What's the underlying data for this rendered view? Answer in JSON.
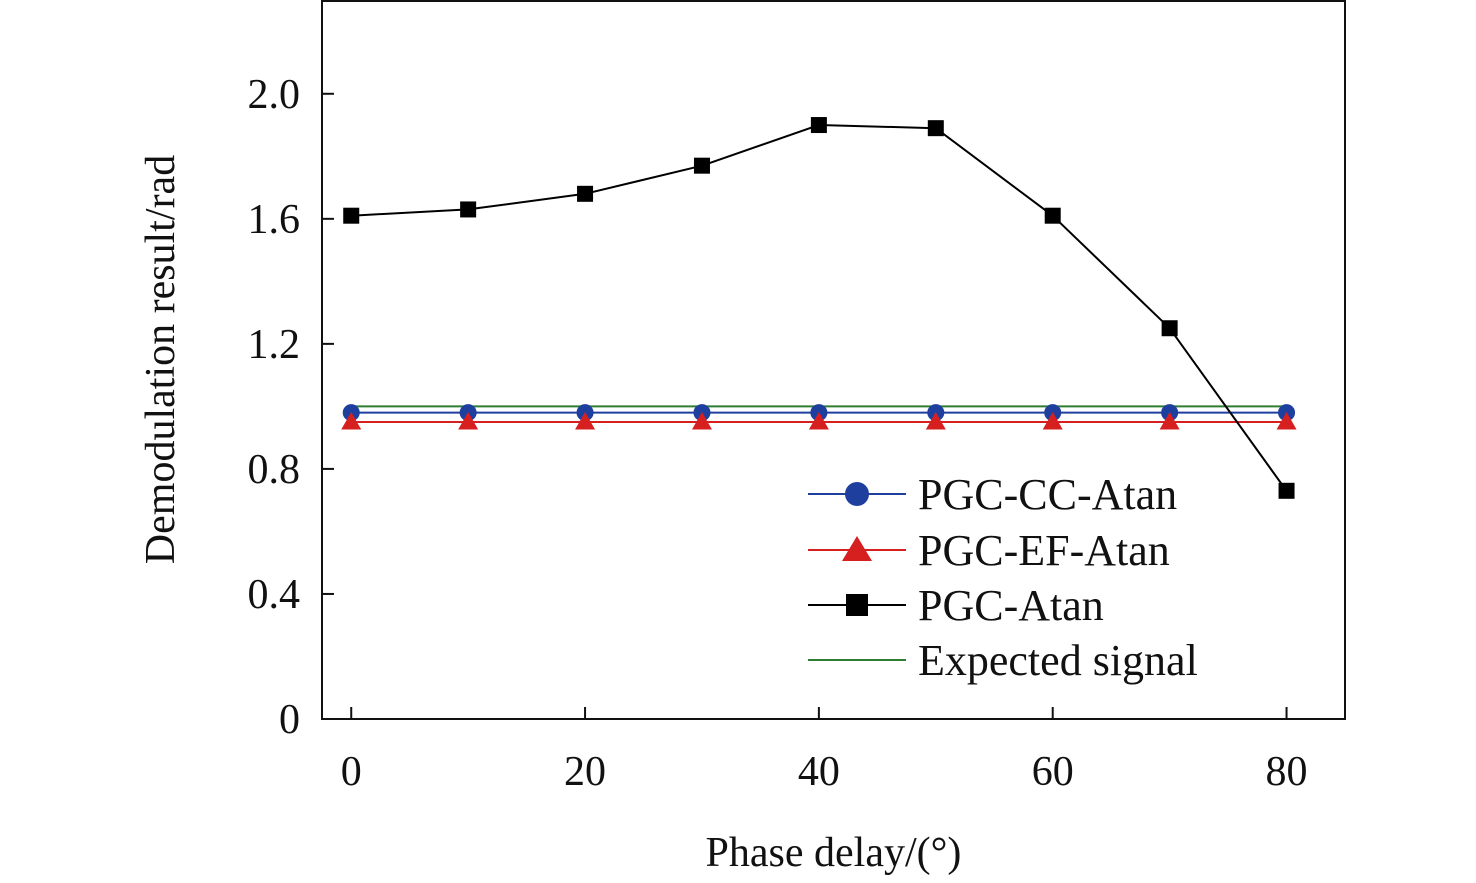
{
  "chart_data": {
    "type": "line",
    "title": "",
    "xlabel": "Phase delay/(°)",
    "ylabel": "Demodulation result/rad",
    "x": [
      0,
      10,
      20,
      30,
      40,
      50,
      60,
      70,
      80
    ],
    "xlim": [
      -2.5,
      85
    ],
    "ylim": [
      0,
      2.3
    ],
    "xticks": [
      0,
      20,
      40,
      60,
      80
    ],
    "xtick_labels": [
      "0",
      "20",
      "40",
      "60",
      "80"
    ],
    "yticks": [
      0,
      0.4,
      0.8,
      1.2,
      1.6,
      2.0
    ],
    "ytick_labels": [
      "0",
      "0.4",
      "0.8",
      "1.2",
      "1.6",
      "2.0"
    ],
    "grid": false,
    "legend_position": "lower-right",
    "series": [
      {
        "name": "PGC-CC-Atan",
        "values": [
          0.98,
          0.98,
          0.98,
          0.98,
          0.98,
          0.98,
          0.98,
          0.98,
          0.98
        ],
        "color": "#1f3f9f",
        "marker": "circle"
      },
      {
        "name": "PGC-EF-Atan",
        "values": [
          0.95,
          0.95,
          0.95,
          0.95,
          0.95,
          0.95,
          0.95,
          0.95,
          0.95
        ],
        "color": "#d62020",
        "marker": "triangle"
      },
      {
        "name": "PGC-Atan",
        "values": [
          1.61,
          1.63,
          1.68,
          1.77,
          1.9,
          1.89,
          1.61,
          1.25,
          0.73
        ],
        "color": "#000000",
        "marker": "square"
      },
      {
        "name": "Expected signal",
        "values": [
          1.0,
          1.0,
          1.0,
          1.0,
          1.0,
          1.0,
          1.0,
          1.0,
          1.0
        ],
        "color": "#2e7d32",
        "marker": "none"
      }
    ]
  }
}
